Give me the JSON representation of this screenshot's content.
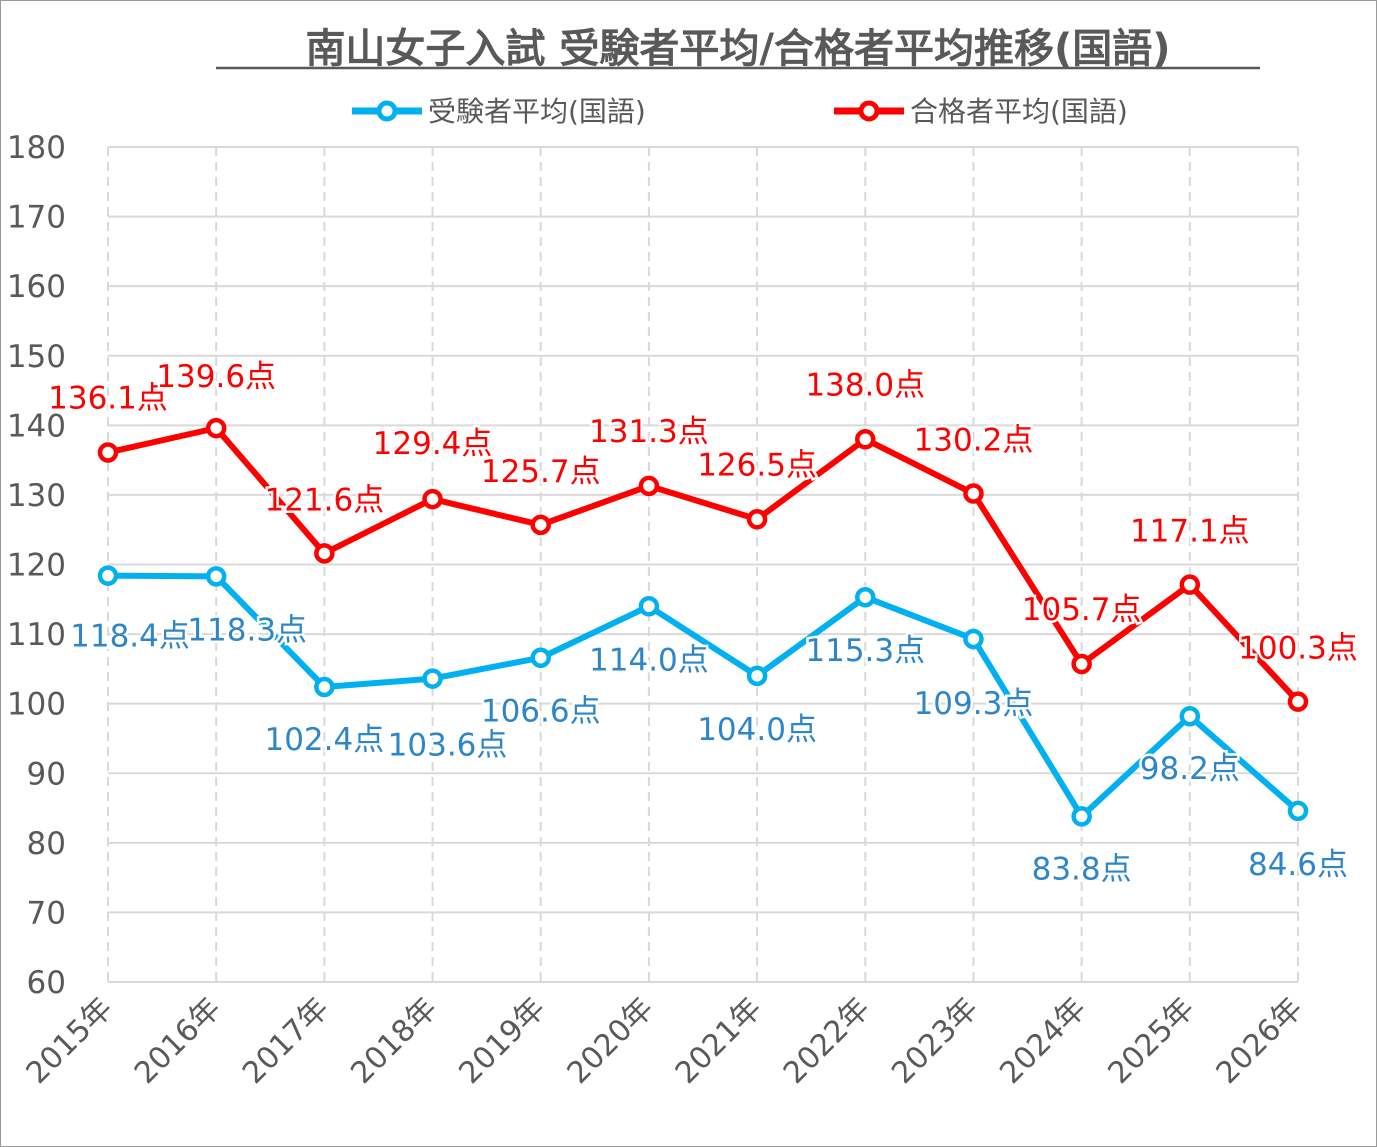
{
  "chart_data": {
    "type": "line",
    "title": "南山女子入試 受験者平均/合格者平均推移(国語)",
    "xlabel": "",
    "ylabel": "",
    "categories": [
      "2015年",
      "2016年",
      "2017年",
      "2018年",
      "2019年",
      "2020年",
      "2021年",
      "2022年",
      "2023年",
      "2024年",
      "2025年",
      "2026年"
    ],
    "ylim": [
      60,
      180
    ],
    "yticks": [
      60,
      70,
      80,
      90,
      100,
      110,
      120,
      130,
      140,
      150,
      160,
      170,
      180
    ],
    "grid": true,
    "legend_position": "top",
    "data_label_suffix": "点",
    "series": [
      {
        "name": "受験者平均(国語)",
        "color": "#00B0F0",
        "label_color": "#2E86C8",
        "values": [
          118.4,
          118.3,
          102.4,
          103.6,
          106.6,
          114.0,
          104.0,
          115.3,
          109.3,
          83.8,
          98.2,
          84.6
        ]
      },
      {
        "name": "合格者平均(国語)",
        "color": "#FF0000",
        "label_color": "#FF0000",
        "values": [
          136.1,
          139.6,
          121.6,
          129.4,
          125.7,
          131.3,
          126.5,
          138.0,
          130.2,
          105.7,
          117.1,
          100.3
        ]
      }
    ]
  }
}
